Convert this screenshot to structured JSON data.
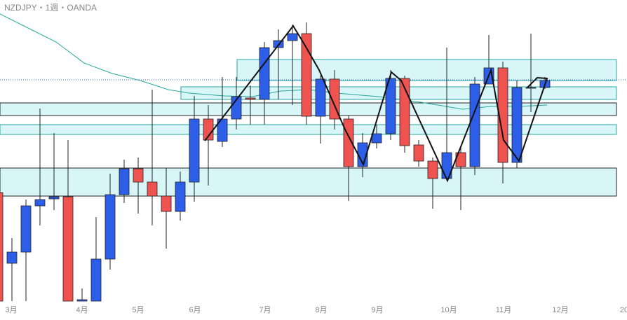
{
  "chart_data": {
    "type": "candlestick",
    "title": "NZDJPY・1週・OANDA",
    "up_color": "#2d5ee8",
    "down_color": "#ef5350",
    "open": [
      182,
      81,
      97,
      163,
      173,
      176,
      27,
      27,
      87,
      179,
      216,
      197,
      177,
      155,
      197,
      287,
      255,
      287,
      317,
      315,
      389,
      399,
      409,
      291,
      344,
      287,
      219,
      253,
      266,
      345,
      250,
      227,
      202,
      239,
      219,
      337,
      360,
      225,
      331,
      332
    ],
    "high": [
      187,
      117,
      172,
      302,
      267,
      257,
      45,
      147,
      209,
      229,
      232,
      329,
      217,
      212,
      320,
      307,
      347,
      347,
      335,
      397,
      415,
      422,
      425,
      349,
      357,
      292,
      267,
      279,
      357,
      349,
      257,
      232,
      389,
      247,
      347,
      407,
      369,
      342,
      409,
      347
    ],
    "low": [
      27,
      27,
      27,
      135,
      157,
      27,
      27,
      27,
      72,
      167,
      152,
      135,
      102,
      142,
      169,
      192,
      247,
      272,
      279,
      279,
      315,
      307,
      279,
      252,
      272,
      170,
      204,
      245,
      257,
      239,
      219,
      159,
      199,
      157,
      207,
      337,
      195,
      217,
      297,
      330
    ],
    "close": [
      27,
      97,
      163,
      172,
      176,
      27,
      29,
      87,
      179,
      216,
      197,
      177,
      155,
      197,
      287,
      257,
      287,
      319,
      315,
      389,
      399,
      409,
      291,
      344,
      287,
      219,
      253,
      266,
      345,
      249,
      227,
      202,
      239,
      219,
      337,
      360,
      225,
      332,
      332,
      342
    ],
    "ylim": [
      0,
      457
    ],
    "xlim": [
      0.15,
      44.85
    ],
    "xticks": [
      {
        "value": 0.95,
        "label": "3月"
      },
      {
        "value": 6,
        "label": "4月"
      },
      {
        "value": 10,
        "label": "5月"
      },
      {
        "value": 14.05,
        "label": "6月"
      },
      {
        "value": 19.05,
        "label": "7月"
      },
      {
        "value": 23.05,
        "label": "8月"
      },
      {
        "value": 27.05,
        "label": "9月"
      },
      {
        "value": 32.15,
        "label": "10月"
      },
      {
        "value": 36.05,
        "label": "11月"
      },
      {
        "value": 40.1,
        "label": "12月"
      },
      {
        "value": 44.65,
        "label": "20"
      }
    ]
  }
}
